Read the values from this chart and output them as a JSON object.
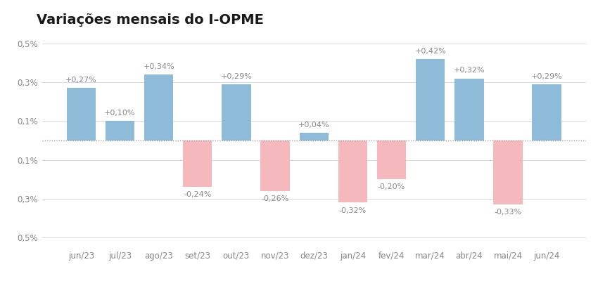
{
  "title": "Variações mensais do I-OPME",
  "categories": [
    "jun/23",
    "jul/23",
    "ago/23",
    "set/23",
    "out/23",
    "nov/23",
    "dez/23",
    "jan/24",
    "fev/24",
    "mar/24",
    "abr/24",
    "mai/24",
    "jun/24"
  ],
  "values": [
    0.27,
    0.1,
    0.34,
    -0.24,
    0.29,
    -0.26,
    0.04,
    -0.32,
    -0.2,
    0.42,
    0.32,
    -0.33,
    0.29
  ],
  "labels": [
    "+0,27%",
    "+0,10%",
    "+0,34%",
    "-0,24%",
    "+0,29%",
    "-0,26%",
    "+0,04%",
    "-0,32%",
    "-0,20%",
    "+0,42%",
    "+0,32%",
    "-0,33%",
    "+0,29%"
  ],
  "color_positive": "#8dbbd8",
  "color_negative": "#f5b8bc",
  "background_color": "#ffffff",
  "ylim": [
    -0.55,
    0.55
  ],
  "ytick_vals": [
    -0.5,
    -0.3,
    -0.1,
    0.1,
    0.3,
    0.5
  ],
  "ytick_labels": [
    "0,5%",
    "0,3%",
    "0,1%",
    "0,1%",
    "0,3%",
    "0,5%"
  ],
  "title_fontsize": 14,
  "label_fontsize": 8,
  "tick_fontsize": 8.5,
  "grid_color": "#d8d8d8",
  "zero_line_color": "#888888",
  "text_color": "#888888"
}
